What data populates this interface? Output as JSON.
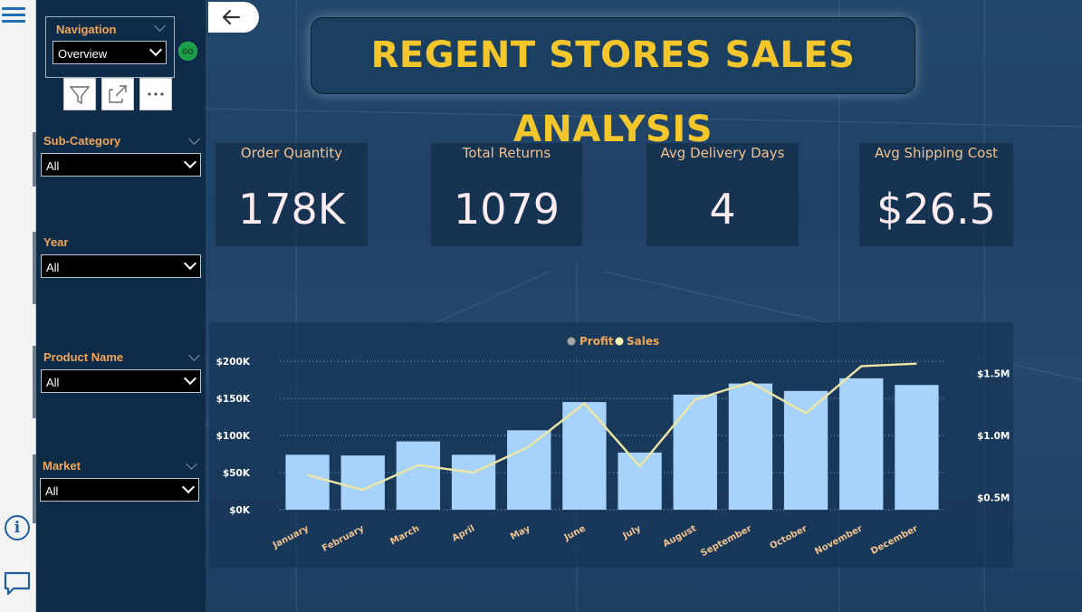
{
  "left_rail": {
    "menu_icon": "hamburger-icon",
    "info_icon": "info-icon",
    "comment_icon": "comment-icon"
  },
  "navigation": {
    "title": "Navigation",
    "selected": "Overview",
    "go_label": "GO",
    "tools": [
      "filter-icon",
      "focus-mode-icon",
      "more-options-icon"
    ]
  },
  "slicers": [
    {
      "label": "Sub-Category",
      "value": "All"
    },
    {
      "label": "Year",
      "value": "All"
    },
    {
      "label": "Product Name",
      "value": "All"
    },
    {
      "label": "Market",
      "value": "All"
    }
  ],
  "title": "REGENT STORES SALES ANALYSIS",
  "kpis": [
    {
      "label": "Order Quantity",
      "value": "178K"
    },
    {
      "label": "Total Returns",
      "value": "1079"
    },
    {
      "label": "Avg Delivery Days",
      "value": "4"
    },
    {
      "label": "Avg Shipping Cost",
      "value": "$26.5"
    }
  ],
  "colors": {
    "title": "#f3c72c",
    "kpi_label": "#f2c28f",
    "bar": "#a7d3fb",
    "line": "#ede6a6",
    "legend_profit_dot": "#a6a6a6",
    "legend_sales_dot": "#f4eeb0",
    "legend_text": "#f2a65a"
  },
  "chart_data": {
    "type": "bar",
    "legend": [
      "Profit",
      "Sales"
    ],
    "legend_position": "top-center",
    "categories": [
      "January",
      "February",
      "March",
      "April",
      "May",
      "June",
      "July",
      "August",
      "September",
      "October",
      "November",
      "December"
    ],
    "series": [
      {
        "name": "Profit",
        "type": "bar",
        "axis": "left",
        "values": [
          74000,
          73000,
          92000,
          74000,
          107000,
          145000,
          77000,
          155000,
          170000,
          160000,
          177000,
          168000
        ]
      },
      {
        "name": "Sales",
        "type": "line",
        "axis": "right",
        "values": [
          680000,
          560000,
          760000,
          700000,
          910000,
          1260000,
          750000,
          1290000,
          1430000,
          1180000,
          1560000,
          1580000
        ]
      }
    ],
    "y_left": {
      "ticks": [
        "$0K",
        "$50K",
        "$100K",
        "$150K",
        "$200K"
      ],
      "tick_values": [
        0,
        50000,
        100000,
        150000,
        200000
      ],
      "range": [
        0,
        200000
      ]
    },
    "y_right": {
      "ticks": [
        "$0.5M",
        "$1.0M",
        "$1.5M"
      ],
      "tick_values": [
        500000,
        1000000,
        1500000
      ],
      "range": [
        400000,
        1600000
      ]
    },
    "gridlines": "dotted-horizontal"
  }
}
